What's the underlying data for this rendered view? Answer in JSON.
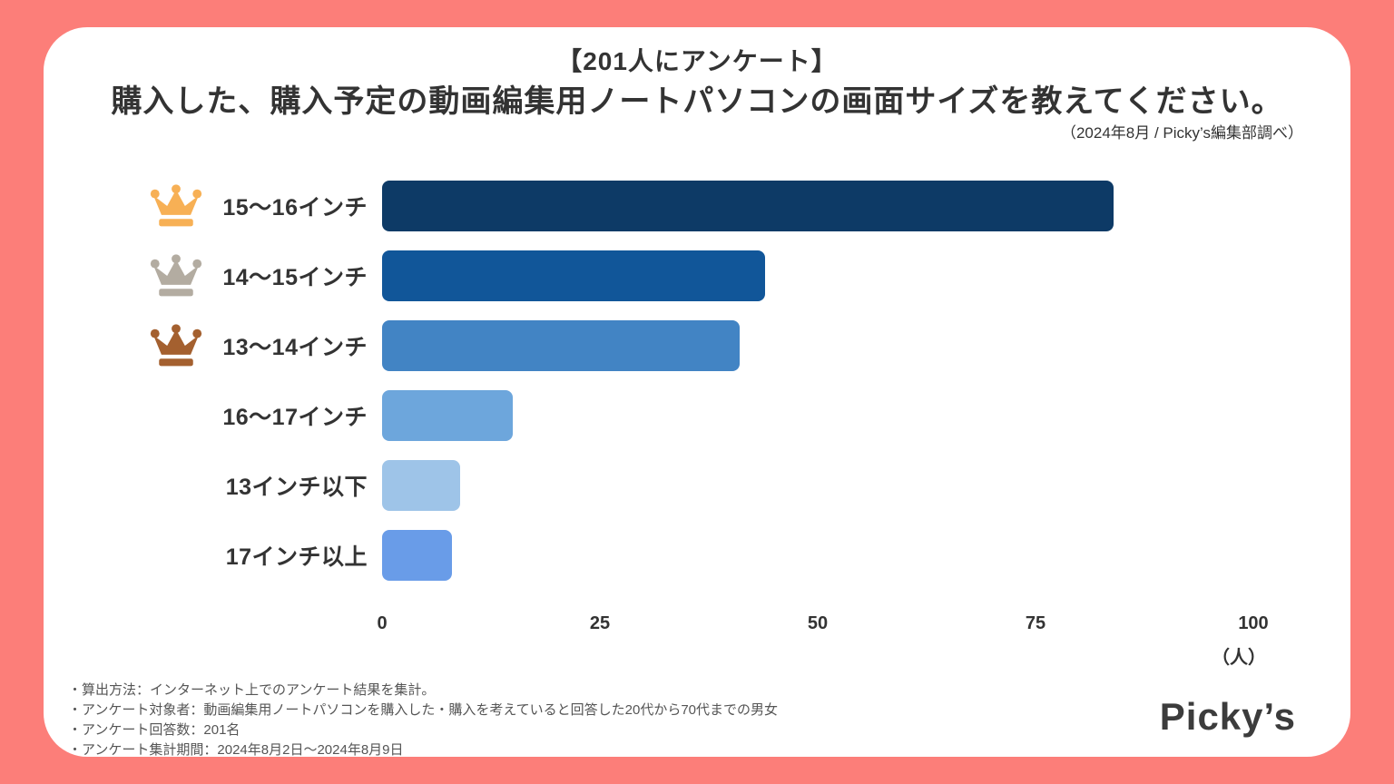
{
  "header": {
    "title_line1": "【201人にアンケート】",
    "title_line2": "購入した、購入予定の動画編集用ノートパソコンの画面サイズを教えてください。",
    "source_note": "（2024年8月 / Picky’s編集部調べ）"
  },
  "chart_data": {
    "type": "bar",
    "orientation": "horizontal",
    "title": "購入した、購入予定の動画編集用ノートパソコンの画面サイズを教えてください。",
    "categories": [
      "15〜16インチ",
      "14〜15インチ",
      "13〜14インチ",
      "16〜17インチ",
      "13インチ以下",
      "17インチ以上"
    ],
    "values": [
      84,
      44,
      41,
      15,
      9,
      8
    ],
    "bar_colors": [
      "#0d3a66",
      "#115699",
      "#4284c4",
      "#6da6dc",
      "#9ec4e8",
      "#699ce8"
    ],
    "rank_icons": [
      "crown-gold",
      "crown-silver",
      "crown-bronze",
      null,
      null,
      null
    ],
    "rank_icon_colors": [
      "#f7b055",
      "#b3aca1",
      "#a4602f",
      null,
      null,
      null
    ],
    "x_ticks": [
      0,
      25,
      50,
      75,
      100
    ],
    "xlim": [
      0,
      100
    ],
    "xlabel": "",
    "ylabel": "",
    "unit_label": "（人）",
    "grid": false,
    "legend": false
  },
  "footer": {
    "notes": [
      "・算出方法：インターネット上でのアンケート結果を集計。",
      "・アンケート対象者：動画編集用ノートパソコンを購入した・購入を考えていると回答した20代から70代までの男女",
      "・アンケート回答数：201名",
      "・アンケート集計期間：2024年8月2日〜2024年8月9日"
    ],
    "logo_text": "Picky’s"
  },
  "colors": {
    "background": "#fc7e79",
    "card": "#ffffff",
    "text": "#333333",
    "notes_text": "#555555"
  }
}
